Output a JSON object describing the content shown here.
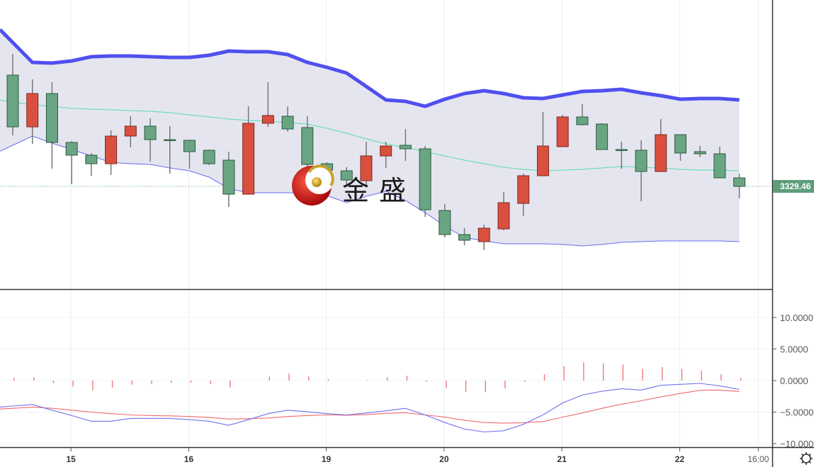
{
  "watermark": {
    "text": "金盛",
    "logo": "jinsheng-logo"
  },
  "last_price": {
    "label": "3329.46",
    "color": "#5e9e7a"
  },
  "colors": {
    "up": "#d9503f",
    "down": "#6aa583",
    "upper_band": "#5050ee",
    "mid_band": "#6fe0b4",
    "lower_band": "#6a6af0",
    "band_fill": "#e5e5f0",
    "dif": "#7070f0",
    "dea": "#f06a6a",
    "histogram": "#f07070"
  },
  "chart_data": [
    {
      "type": "candlestick",
      "title": "",
      "x_tick_labels": [
        {
          "label": "15",
          "index": 3
        },
        {
          "label": "16",
          "index": 9
        },
        {
          "label": "19",
          "index": 16
        },
        {
          "label": "20",
          "index": 22
        },
        {
          "label": "21",
          "index": 28
        },
        {
          "label": "22",
          "index": 34
        },
        {
          "label": "16:00",
          "index": 38
        }
      ],
      "last_value": 3329.46,
      "candles": [
        [
          3368.71,
          3376.21,
          3347.46,
          3350.46
        ],
        [
          3350.46,
          3367.21,
          3344.46,
          3362.21
        ],
        [
          3362.21,
          3366.21,
          3335.71,
          3344.96
        ],
        [
          3344.96,
          3345.46,
          3330.21,
          3340.46
        ],
        [
          3340.46,
          3341.21,
          3333.21,
          3337.46
        ],
        [
          3337.46,
          3349.21,
          3333.46,
          3347.21
        ],
        [
          3347.21,
          3354.21,
          3343.21,
          3350.71
        ],
        [
          3350.71,
          3353.46,
          3338.21,
          3345.96
        ],
        [
          3345.96,
          3350.71,
          3333.96,
          3345.71
        ],
        [
          3345.71,
          3345.96,
          3335.71,
          3341.71
        ],
        [
          3342.21,
          3342.46,
          3336.96,
          3337.46
        ],
        [
          3338.71,
          3341.71,
          3322.21,
          3326.71
        ],
        [
          3326.71,
          3357.71,
          3326.46,
          3351.71
        ],
        [
          3351.71,
          3366.21,
          3350.46,
          3354.46
        ],
        [
          3354.21,
          3357.71,
          3348.71,
          3349.71
        ],
        [
          3350.21,
          3354.21,
          3333.21,
          3337.21
        ],
        [
          3337.46,
          3337.96,
          3330.21,
          3335.21
        ],
        [
          3334.96,
          3336.21,
          3329.71,
          3331.71
        ],
        [
          3331.46,
          3345.21,
          3329.71,
          3340.21
        ],
        [
          3340.21,
          3345.21,
          3335.96,
          3343.71
        ],
        [
          3343.96,
          3349.71,
          3338.46,
          3342.71
        ],
        [
          3342.71,
          3343.71,
          3318.71,
          3321.21
        ],
        [
          3320.96,
          3323.21,
          3311.46,
          3312.46
        ],
        [
          3312.46,
          3314.71,
          3308.71,
          3310.46
        ],
        [
          3309.96,
          3315.96,
          3306.96,
          3314.71
        ],
        [
          3314.46,
          3327.46,
          3313.96,
          3323.71
        ],
        [
          3323.46,
          3333.96,
          3318.96,
          3333.21
        ],
        [
          3333.21,
          3355.71,
          3333.21,
          3343.71
        ],
        [
          3343.46,
          3354.71,
          3343.46,
          3353.96
        ],
        [
          3353.96,
          3358.46,
          3350.96,
          3351.21
        ],
        [
          3351.46,
          3351.71,
          3342.46,
          3342.46
        ],
        [
          3342.46,
          3345.21,
          3335.71,
          3342.21
        ],
        [
          3342.21,
          3345.71,
          3324.21,
          3334.71
        ],
        [
          3334.71,
          3353.21,
          3334.71,
          3347.71
        ],
        [
          3347.71,
          3347.71,
          3338.46,
          3341.21
        ],
        [
          3341.71,
          3343.71,
          3339.71,
          3340.96
        ],
        [
          3340.96,
          3343.46,
          3332.46,
          3332.46
        ],
        [
          3332.46,
          3333.96,
          3325.21,
          3329.46
        ]
      ],
      "candle_format": [
        "open",
        "high",
        "low",
        "close"
      ],
      "bollinger": {
        "upper": [
          3380.21,
          3373.21,
          3372.96,
          3373.71,
          3375.21,
          3375.46,
          3375.46,
          3375.21,
          3374.96,
          3374.96,
          3375.71,
          3377.21,
          3376.96,
          3376.96,
          3375.96,
          3373.21,
          3371.46,
          3369.46,
          3364.71,
          3359.96,
          3359.46,
          3357.71,
          3360.21,
          3362.21,
          3363.21,
          3362.21,
          3360.71,
          3360.46,
          3361.71,
          3362.96,
          3363.21,
          3363.71,
          3362.46,
          3361.46,
          3360.21,
          3360.46,
          3360.46,
          3359.96
        ],
        "middle": [
          3359.21,
          3358.21,
          3357.71,
          3356.96,
          3356.71,
          3356.46,
          3356.21,
          3355.96,
          3355.46,
          3354.71,
          3353.96,
          3353.21,
          3352.71,
          3352.46,
          3351.96,
          3351.46,
          3349.96,
          3348.21,
          3346.21,
          3344.46,
          3343.21,
          3341.71,
          3340.21,
          3338.71,
          3337.46,
          3336.21,
          3335.46,
          3334.96,
          3335.21,
          3335.46,
          3335.96,
          3336.46,
          3336.21,
          3335.96,
          3335.46,
          3335.21,
          3335.21,
          3334.96
        ],
        "lower": [
          3343.96,
          3347.21,
          3344.71,
          3342.46,
          3340.21,
          3337.96,
          3337.46,
          3337.21,
          3335.96,
          3334.96,
          3332.71,
          3328.71,
          3327.21,
          3327.21,
          3327.21,
          3327.21,
          3326.21,
          3323.71,
          3325.96,
          3327.71,
          3324.46,
          3320.21,
          3315.46,
          3311.46,
          3310.21,
          3309.21,
          3309.21,
          3309.21,
          3308.96,
          3308.46,
          3308.96,
          3309.71,
          3309.96,
          3310.21,
          3310.21,
          3310.21,
          3310.21,
          3309.96
        ]
      }
    },
    {
      "type": "macd",
      "ylim": [
        -10,
        13
      ],
      "y_tick_labels": [
        "10.0000",
        "5.0000",
        "0.0000",
        "−5.0000",
        "−10.0000"
      ],
      "y_tick_values": [
        10,
        5,
        0,
        -5,
        -10
      ],
      "histogram": [
        0.45,
        0.55,
        -0.4,
        -0.95,
        -1.55,
        -1.1,
        -0.65,
        -0.55,
        -0.35,
        -0.35,
        -0.55,
        -1.1,
        0,
        0.65,
        1.1,
        0.65,
        0.25,
        0,
        0.1,
        0.5,
        0.75,
        -0.2,
        -1.2,
        -1.8,
        -1.85,
        -1.25,
        -0.2,
        1.0,
        2.3,
        2.9,
        2.75,
        2.55,
        1.85,
        2.15,
        1.85,
        1.55,
        1.0,
        0.45
      ],
      "dif": [
        -4.05,
        -3.8,
        -4.7,
        -5.55,
        -6.45,
        -6.45,
        -6.0,
        -6.0,
        -6.0,
        -6.2,
        -6.45,
        -7.1,
        -6.2,
        -5.25,
        -4.7,
        -4.95,
        -5.25,
        -5.45,
        -5.15,
        -4.8,
        -4.4,
        -5.45,
        -6.65,
        -7.7,
        -8.15,
        -7.95,
        -6.95,
        -5.45,
        -3.55,
        -2.3,
        -1.7,
        -1.3,
        -1.5,
        -0.75,
        -0.6,
        -0.45,
        -0.85,
        -1.4
      ],
      "dea": [
        -4.4,
        -4.2,
        -4.4,
        -4.7,
        -5.0,
        -5.25,
        -5.45,
        -5.55,
        -5.6,
        -5.7,
        -5.85,
        -6.1,
        -6.05,
        -5.95,
        -5.7,
        -5.55,
        -5.45,
        -5.5,
        -5.4,
        -5.2,
        -5.1,
        -5.45,
        -5.8,
        -6.3,
        -6.65,
        -6.75,
        -6.7,
        -6.5,
        -5.8,
        -5.15,
        -4.4,
        -3.75,
        -3.2,
        -2.6,
        -2.05,
        -1.55,
        -1.5,
        -1.75
      ]
    }
  ]
}
